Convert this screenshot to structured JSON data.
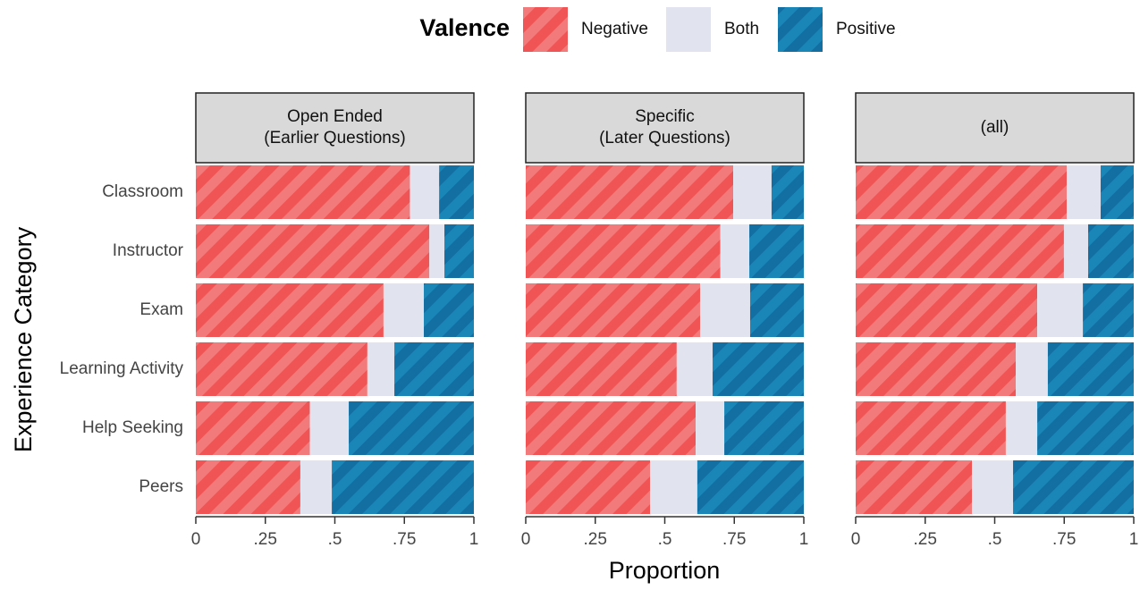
{
  "chart_data": {
    "type": "bar",
    "orientation": "horizontal",
    "stacked": true,
    "legend_title": "Valence",
    "x_label": "Proportion",
    "y_label": "Experience Category",
    "categories": [
      "Classroom",
      "Instructor",
      "Exam",
      "Learning Activity",
      "Help Seeking",
      "Peers"
    ],
    "series": [
      {
        "name": "Negative",
        "color": "#f05454"
      },
      {
        "name": "Both",
        "color": "#e1e3ee"
      },
      {
        "name": "Positive",
        "color": "#1a86b8"
      }
    ],
    "xlim": [
      0,
      1
    ],
    "xticks": [
      0,
      {
        "value": 0.25,
        "label": ".25"
      },
      {
        "value": 0.5,
        "label": ".5"
      },
      {
        "value": 0.75,
        "label": ".75"
      },
      1
    ],
    "panels": [
      {
        "title": [
          "Open Ended",
          "(Earlier Questions)"
        ],
        "values": [
          [
            0.77,
            0.84,
            0.675,
            0.617,
            0.41,
            0.376
          ],
          [
            0.105,
            0.054,
            0.145,
            0.097,
            0.14,
            0.113
          ],
          [
            0.125,
            0.106,
            0.18,
            0.286,
            0.45,
            0.511
          ]
        ]
      },
      {
        "title": [
          "Specific",
          "(Later Questions)"
        ],
        "values": [
          [
            0.746,
            0.7,
            0.627,
            0.543,
            0.611,
            0.447
          ],
          [
            0.138,
            0.104,
            0.18,
            0.129,
            0.103,
            0.17
          ],
          [
            0.116,
            0.196,
            0.193,
            0.328,
            0.286,
            0.383
          ]
        ]
      },
      {
        "title": [
          "(all)"
        ],
        "values": [
          [
            0.759,
            0.749,
            0.653,
            0.576,
            0.54,
            0.418
          ],
          [
            0.122,
            0.087,
            0.164,
            0.115,
            0.113,
            0.148
          ],
          [
            0.119,
            0.164,
            0.183,
            0.309,
            0.347,
            0.434
          ]
        ]
      }
    ]
  }
}
